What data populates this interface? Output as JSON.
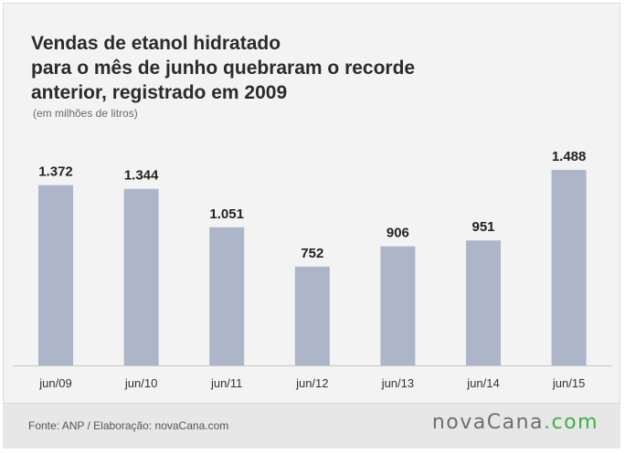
{
  "title_lines": [
    "Vendas de etanol hidratado",
    "para o mês de junho quebraram o recorde",
    "anterior, registrado em 2009"
  ],
  "subtitle": "(em milhões de litros)",
  "footer": {
    "source": "Fonte: ANP / Elaboração: novaCana.com",
    "logo_main": "novaCana",
    "logo_accent": ".com"
  },
  "colors": {
    "bar": "#adb6c8",
    "logo_accent": "#3fae49"
  },
  "chart_data": {
    "type": "bar",
    "title": "Vendas de etanol hidratado para o mês de junho quebraram o recorde anterior, registrado em 2009",
    "subtitle": "(em milhões de litros)",
    "categories": [
      "jun/09",
      "jun/10",
      "jun/11",
      "jun/12",
      "jun/13",
      "jun/14",
      "jun/15"
    ],
    "values": [
      1372,
      1344,
      1051,
      752,
      906,
      951,
      1488
    ],
    "value_labels": [
      "1.372",
      "1.344",
      "1.051",
      "752",
      "906",
      "951",
      "1.488"
    ],
    "ylim": [
      0,
      1488
    ],
    "grid": false,
    "legend": "none"
  }
}
